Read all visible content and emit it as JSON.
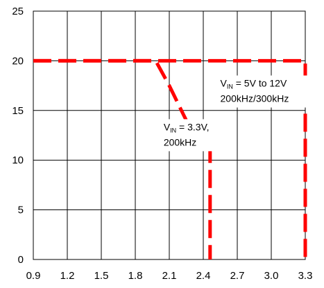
{
  "chart_data": {
    "type": "line",
    "title": "",
    "xlabel": "",
    "ylabel": "",
    "xlim": [
      0.9,
      3.3
    ],
    "ylim": [
      0,
      25
    ],
    "grid": true,
    "x_ticks": [
      "0.9",
      "1.2",
      "1.5",
      "1.8",
      "2.1",
      "2.4",
      "2.7",
      "3.0",
      "3.3"
    ],
    "y_ticks": [
      "0",
      "5",
      "10",
      "15",
      "20",
      "25"
    ],
    "series": [
      {
        "color": "#ff0000",
        "style": "dashed",
        "points": [
          [
            0.9,
            20
          ],
          [
            1.8,
            20
          ],
          [
            1.98,
            20
          ],
          [
            2.1,
            17.5
          ],
          [
            2.25,
            14
          ],
          [
            2.46,
            12
          ],
          [
            2.46,
            0
          ]
        ]
      },
      {
        "color": "#ff0000",
        "style": "dashed",
        "points": [
          [
            0.9,
            20
          ],
          [
            3.3,
            20
          ],
          [
            3.3,
            0
          ]
        ]
      }
    ],
    "annotations": [
      {
        "text_main": "V",
        "text_sub": "IN",
        "text_rest": " = 3.3V,",
        "line2": "200kHz",
        "x": 2.05,
        "y": 13
      },
      {
        "text_main": "V",
        "text_sub": "IN",
        "text_rest": " = 5V to 12V",
        "line2": "200kHz/300kHz",
        "x": 2.55,
        "y": 17.4
      }
    ]
  }
}
